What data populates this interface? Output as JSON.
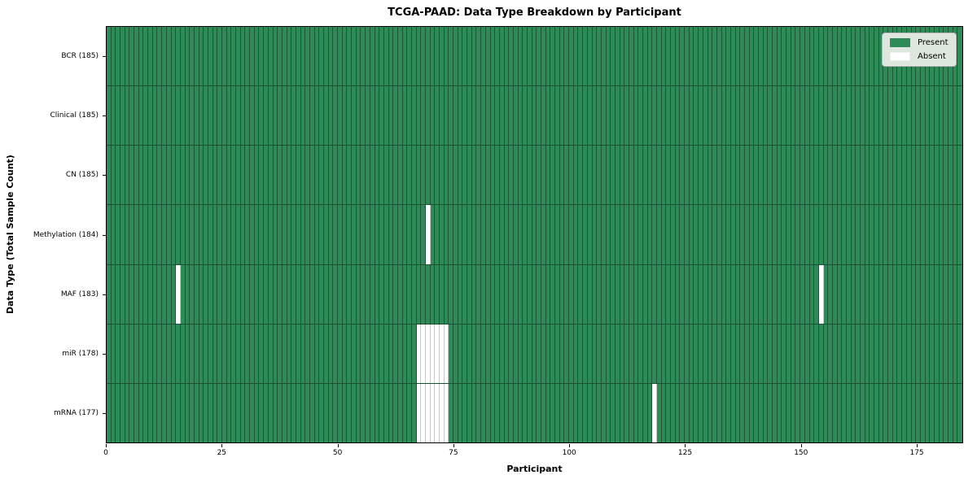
{
  "chart_data": {
    "type": "heatmap",
    "title": "TCGA-PAAD: Data Type Breakdown by Participant",
    "xlabel": "Participant",
    "ylabel": "Data Type (Total Sample Count)",
    "n_participants": 185,
    "x_range": [
      0,
      185
    ],
    "x_ticks": [
      0,
      25,
      50,
      75,
      100,
      125,
      150,
      175
    ],
    "grid_on": true,
    "legend_position": "upper right",
    "rows": [
      {
        "data_type": "BCR",
        "label": "BCR (185)",
        "present_count": 185,
        "absent_participants": []
      },
      {
        "data_type": "Clinical",
        "label": "Clinical (185)",
        "present_count": 185,
        "absent_participants": []
      },
      {
        "data_type": "CN",
        "label": "CN (185)",
        "present_count": 185,
        "absent_participants": []
      },
      {
        "data_type": "Methylation",
        "label": "Methylation (184)",
        "present_count": 184,
        "absent_participants": [
          69
        ]
      },
      {
        "data_type": "MAF",
        "label": "MAF (183)",
        "present_count": 183,
        "absent_participants": [
          15,
          154
        ]
      },
      {
        "data_type": "miR",
        "label": "miR (178)",
        "present_count": 178,
        "absent_participants": [
          67,
          68,
          69,
          70,
          71,
          72,
          73
        ]
      },
      {
        "data_type": "mRNA",
        "label": "mRNA (177)",
        "present_count": 177,
        "absent_participants": [
          67,
          68,
          69,
          70,
          71,
          72,
          73,
          118
        ]
      }
    ],
    "legend": [
      {
        "label": "Present",
        "color": "#2e8b57"
      },
      {
        "label": "Absent",
        "color": "#ffffff"
      }
    ],
    "colors": {
      "present": "#2e8b57",
      "absent": "#ffffff",
      "cell_border_on_green": "rgba(0,0,0,0.38)",
      "cell_border_on_white": "#c9c9c9",
      "axes_frame": "#000000",
      "legend_background": "#dde7dd"
    }
  }
}
